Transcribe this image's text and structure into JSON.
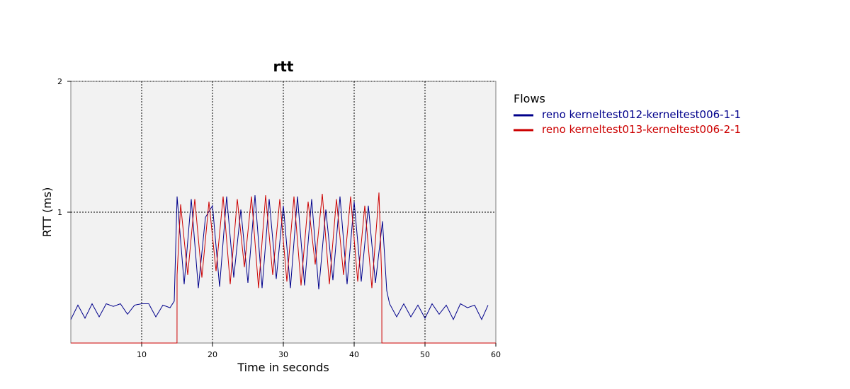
{
  "chart_data": {
    "type": "line",
    "title": "rtt",
    "xlabel": "Time in seconds",
    "ylabel": "RTT (ms)",
    "xlim": [
      0,
      60
    ],
    "ylim": [
      0,
      2
    ],
    "x_ticks": [
      10,
      20,
      30,
      40,
      50,
      60
    ],
    "y_ticks": [
      1,
      2
    ],
    "grid": true,
    "legend_title": "Flows",
    "legend_position": "right",
    "series": [
      {
        "name": "reno kerneltest012-kerneltest006-1-1",
        "color": "#00008B",
        "x": [
          0,
          1,
          2,
          3,
          4,
          5,
          6,
          7,
          8,
          9,
          10,
          11,
          12,
          13,
          14,
          14.6,
          15,
          16,
          17,
          18,
          19,
          20,
          21,
          22,
          23,
          24,
          25,
          26,
          27,
          28,
          29,
          30,
          31,
          32,
          33,
          34,
          35,
          36,
          37,
          38,
          39,
          40,
          41,
          42,
          43,
          44,
          44.6,
          45,
          46,
          47,
          48,
          49,
          50,
          51,
          52,
          53,
          54,
          55,
          56,
          57,
          58,
          58.9
        ],
        "values": [
          0.18,
          0.29,
          0.19,
          0.3,
          0.2,
          0.3,
          0.28,
          0.3,
          0.22,
          0.29,
          0.3,
          0.3,
          0.2,
          0.29,
          0.27,
          0.32,
          1.12,
          0.45,
          1.1,
          0.42,
          0.96,
          1.05,
          0.43,
          1.12,
          0.5,
          1.02,
          0.46,
          1.13,
          0.42,
          1.1,
          0.49,
          1.05,
          0.42,
          1.12,
          0.44,
          1.1,
          0.41,
          1.02,
          0.48,
          1.12,
          0.45,
          1.08,
          0.47,
          1.05,
          0.46,
          0.93,
          0.4,
          0.3,
          0.2,
          0.3,
          0.2,
          0.29,
          0.19,
          0.3,
          0.22,
          0.29,
          0.18,
          0.3,
          0.27,
          0.29,
          0.18,
          0.29
        ]
      },
      {
        "name": "reno kerneltest013-kerneltest006-2-1",
        "color": "#CC0000",
        "x": [
          0,
          14.99,
          15,
          15.5,
          16.5,
          17.5,
          18.5,
          19.5,
          20.5,
          21.5,
          22.5,
          23.5,
          24.5,
          25.5,
          26.5,
          27.5,
          28.5,
          29.5,
          30.5,
          31.5,
          32.5,
          33.5,
          34.5,
          35.5,
          36.5,
          37.5,
          38.5,
          39.5,
          40.5,
          41.5,
          42.5,
          43.5,
          43.9,
          43.91,
          60
        ],
        "values": [
          0,
          0,
          0.52,
          1.06,
          0.52,
          1.1,
          0.5,
          1.08,
          0.55,
          1.12,
          0.45,
          1.1,
          0.58,
          1.12,
          0.42,
          1.13,
          0.52,
          1.1,
          0.47,
          1.12,
          0.44,
          1.08,
          0.6,
          1.14,
          0.45,
          1.1,
          0.52,
          1.12,
          0.47,
          1.05,
          0.42,
          1.15,
          0.48,
          0,
          0
        ]
      }
    ]
  }
}
